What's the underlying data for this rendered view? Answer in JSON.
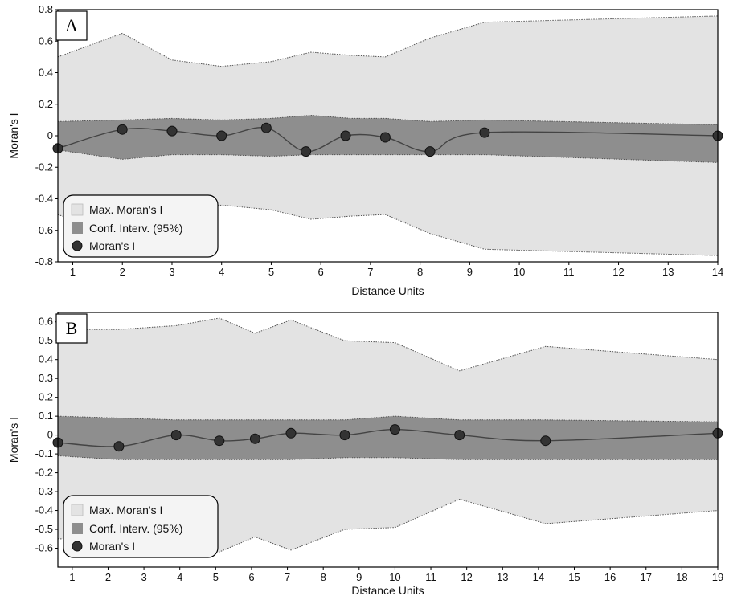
{
  "chart_data": [
    {
      "type": "area",
      "panel_label": "A",
      "xlabel": "Distance Units",
      "ylabel": "Moran's I",
      "xlim": [
        0.7,
        14
      ],
      "ylim": [
        -0.8,
        0.8
      ],
      "xticks": [
        1,
        2,
        3,
        4,
        5,
        6,
        7,
        8,
        9,
        10,
        11,
        12,
        13,
        14
      ],
      "yticks": [
        0.8,
        0.6,
        0.4,
        0.2,
        0,
        -0.2,
        -0.4,
        -0.6,
        -0.8
      ],
      "yticklabels": [
        "0.8",
        "0.6",
        "0.4",
        "0.2",
        "0",
        "-0.2",
        "-0.4",
        "-0.6",
        "-0.8"
      ],
      "legend": {
        "placement": "bottom-left",
        "entries": [
          "Max. Moran's I",
          "Conf. Interv. (95%)",
          "Moran's I"
        ]
      },
      "max_band": {
        "x": [
          0.7,
          2.0,
          3.0,
          4.0,
          5.0,
          5.8,
          6.6,
          7.3,
          8.2,
          9.3,
          14.0
        ],
        "upper": [
          0.5,
          0.65,
          0.48,
          0.44,
          0.47,
          0.53,
          0.51,
          0.5,
          0.62,
          0.72,
          0.76
        ],
        "lower": [
          -0.5,
          -0.65,
          -0.48,
          -0.44,
          -0.47,
          -0.53,
          -0.51,
          -0.5,
          -0.62,
          -0.72,
          -0.76
        ]
      },
      "conf_band": {
        "x": [
          0.7,
          2.0,
          3.0,
          4.0,
          5.0,
          5.8,
          6.6,
          7.3,
          8.2,
          9.3,
          14.0
        ],
        "upper": [
          0.09,
          0.1,
          0.11,
          0.1,
          0.11,
          0.13,
          0.11,
          0.11,
          0.09,
          0.1,
          0.07
        ],
        "lower": [
          -0.09,
          -0.15,
          -0.12,
          -0.12,
          -0.13,
          -0.12,
          -0.12,
          -0.12,
          -0.12,
          -0.12,
          -0.17
        ]
      },
      "series": [
        {
          "x": [
            0.7,
            2.0,
            3.0,
            4.0,
            4.9,
            5.7,
            6.5,
            7.3,
            8.2,
            9.3,
            14.0
          ],
          "values": [
            -0.08,
            0.04,
            0.03,
            0.0,
            0.05,
            -0.1,
            0.0,
            -0.01,
            -0.1,
            0.02,
            0.0
          ]
        }
      ]
    },
    {
      "type": "area",
      "panel_label": "B",
      "xlabel": "Distance Units",
      "ylabel": "Moran's I",
      "xlim": [
        0.6,
        19
      ],
      "ylim": [
        -0.7,
        0.65
      ],
      "xticks": [
        1,
        2,
        3,
        4,
        5,
        6,
        7,
        8,
        9,
        10,
        11,
        12,
        13,
        14,
        15,
        16,
        17,
        18,
        19
      ],
      "yticks": [
        0.6,
        0.5,
        0.4,
        0.3,
        0.2,
        0.1,
        0,
        -0.1,
        -0.2,
        -0.3,
        -0.4,
        -0.5,
        -0.6
      ],
      "yticklabels": [
        "0.6",
        "0.5",
        "0.4",
        "0.3",
        "0.2",
        "0.1",
        "0",
        "-0.1",
        "-0.2",
        "-0.3",
        "-0.4",
        "-0.5",
        "-0.6"
      ],
      "legend": {
        "placement": "bottom-left",
        "entries": [
          "Max. Moran's I",
          "Conf. Interv. (95%)",
          "Moran's I"
        ]
      },
      "max_band": {
        "x": [
          0.6,
          2.3,
          3.9,
          5.1,
          6.1,
          7.1,
          8.6,
          10.0,
          11.8,
          14.2,
          19.0
        ],
        "upper": [
          0.56,
          0.56,
          0.58,
          0.62,
          0.54,
          0.61,
          0.5,
          0.49,
          0.34,
          0.47,
          0.4
        ],
        "lower": [
          -0.55,
          -0.56,
          -0.58,
          -0.62,
          -0.54,
          -0.61,
          -0.5,
          -0.49,
          -0.34,
          -0.47,
          -0.4
        ]
      },
      "conf_band": {
        "x": [
          0.6,
          2.3,
          3.9,
          5.1,
          6.1,
          7.1,
          8.6,
          10.0,
          11.8,
          14.2,
          19.0
        ],
        "upper": [
          0.1,
          0.09,
          0.08,
          0.08,
          0.08,
          0.08,
          0.08,
          0.1,
          0.08,
          0.08,
          0.07
        ],
        "lower": [
          -0.11,
          -0.13,
          -0.13,
          -0.13,
          -0.13,
          -0.13,
          -0.12,
          -0.12,
          -0.13,
          -0.13,
          -0.13
        ]
      },
      "series": [
        {
          "x": [
            0.6,
            2.3,
            3.9,
            5.1,
            6.1,
            7.1,
            8.6,
            10.0,
            11.8,
            14.2,
            19.0
          ],
          "values": [
            -0.04,
            -0.06,
            0.0,
            -0.03,
            -0.02,
            0.01,
            0.0,
            0.03,
            0.0,
            -0.03,
            0.01
          ]
        }
      ]
    }
  ],
  "colors": {
    "max_fill": "#e3e3e3",
    "conf_fill": "#8e8e8e",
    "band_edge": "#555555",
    "line": "#444444",
    "marker": "#333333",
    "legend_bg": "#f4f4f4"
  }
}
